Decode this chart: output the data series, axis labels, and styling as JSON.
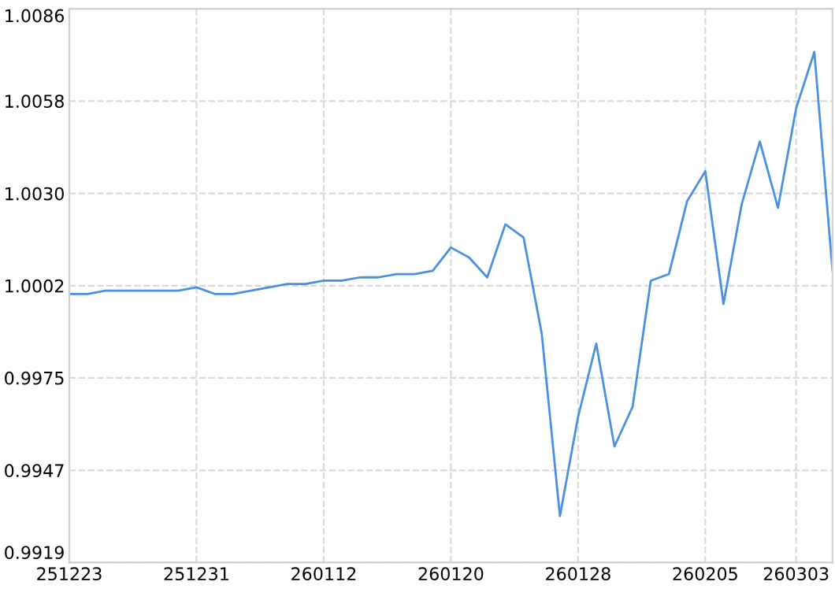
{
  "chart_data": {
    "type": "line",
    "categories": [
      "251223",
      null,
      null,
      null,
      null,
      null,
      null,
      "251231",
      null,
      null,
      null,
      null,
      null,
      null,
      "260112",
      null,
      null,
      null,
      null,
      null,
      null,
      "260120",
      null,
      null,
      null,
      null,
      null,
      null,
      "260128",
      null,
      null,
      null,
      null,
      null,
      null,
      "260205",
      null,
      null,
      null,
      null,
      "260303",
      null,
      null
    ],
    "series": [
      {
        "color": "#4a90e2",
        "values": [
          1.0,
          1.0,
          1.0001,
          1.0001,
          1.0001,
          1.0001,
          1.0001,
          1.0002,
          1.0,
          1.0,
          1.0001,
          1.0002,
          1.0003,
          1.0003,
          1.0004,
          1.0004,
          1.0005,
          1.0005,
          1.0006,
          1.0006,
          1.0007,
          1.0014,
          1.0011,
          1.0005,
          1.0021,
          1.0017,
          0.9988,
          0.9933,
          0.9963,
          0.9985,
          0.9954,
          0.9966,
          1.0004,
          1.0006,
          1.0028,
          1.0037,
          0.9997,
          1.0027,
          1.0046,
          1.0026,
          1.0056,
          1.0073,
          1.0007
        ]
      }
    ],
    "ylim": [
      0.9919,
      1.0086
    ],
    "yticks": [
      0.9919,
      {
        "value": 0.99468,
        "label": "0.9947"
      },
      {
        "value": 0.99747,
        "label": "0.9975"
      },
      {
        "value": 1.00025,
        "label": "1.0002"
      },
      {
        "value": 1.00303,
        "label": "1.0030"
      },
      {
        "value": 1.00582,
        "label": "1.0058"
      },
      1.0086
    ],
    "grid": true,
    "marker": "none",
    "line_style": "solid"
  }
}
